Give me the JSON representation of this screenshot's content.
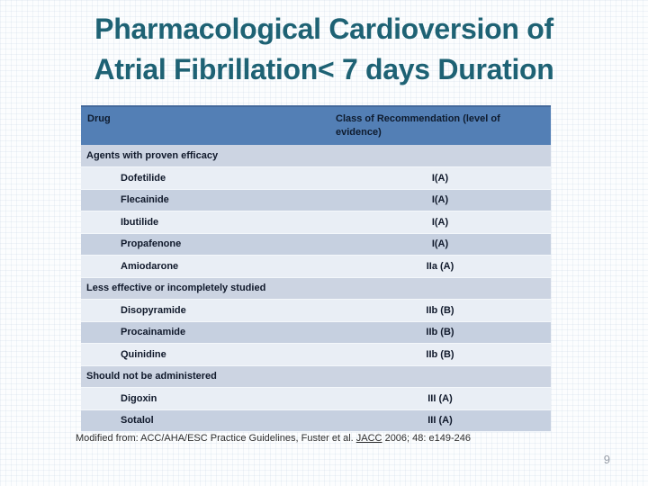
{
  "slide": {
    "title": {
      "line1": "Pharmacological Cardioversion of",
      "line2": "Atrial Fibrillation< 7 days Duration"
    },
    "footnote": {
      "prefix": "Modified from: ACC/AHA/ESC Practice Guidelines, Fuster et al. ",
      "journal": "JACC",
      "suffix": " 2006; 48: e149-246"
    },
    "page_number": "9"
  },
  "table": {
    "columns": [
      "Drug",
      "Class of Recommendation (level of evidence)"
    ],
    "sections": [
      {
        "label": "Agents with proven efficacy",
        "rows": [
          [
            "Dofetilide",
            "I(A)"
          ],
          [
            "Flecainide",
            "I(A)"
          ],
          [
            "Ibutilide",
            "I(A)"
          ],
          [
            "Propafenone",
            "I(A)"
          ],
          [
            "Amiodarone",
            "IIa (A)"
          ]
        ]
      },
      {
        "label": "Less effective or incompletely studied",
        "rows": [
          [
            "Disopyramide",
            "IIb (B)"
          ],
          [
            "Procainamide",
            "IIb (B)"
          ],
          [
            "Quinidine",
            "IIb (B)"
          ]
        ]
      },
      {
        "label": "Should not be administered",
        "rows": [
          [
            "Digoxin",
            "III (A)"
          ],
          [
            "Sotalol",
            "III (A)"
          ]
        ]
      }
    ]
  },
  "colors": {
    "title_teal": "#1e6274",
    "header_blue": "#537fb5",
    "section_row": "#ccd4e2",
    "stripe_light": "#e9eef5",
    "stripe_dark": "#c6d0e0",
    "page_number_gray": "#969ca6"
  }
}
